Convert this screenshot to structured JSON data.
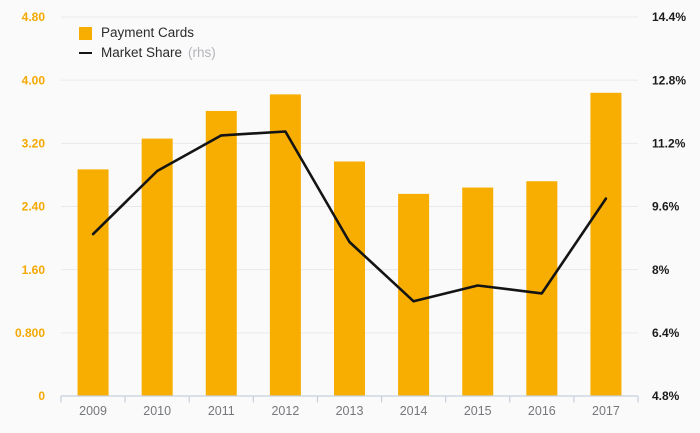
{
  "chart_data": {
    "type": "bar",
    "subtype": "bar-line-combo",
    "categories": [
      "2009",
      "2010",
      "2011",
      "2012",
      "2013",
      "2014",
      "2015",
      "2016",
      "2017"
    ],
    "series": [
      {
        "name": "Payment Cards",
        "mark": "bar",
        "axis": "left",
        "color": "#f8ae00",
        "values": [
          2.87,
          3.26,
          3.61,
          3.82,
          2.97,
          2.56,
          2.64,
          2.72,
          3.84
        ]
      },
      {
        "name": "Market Share (rhs)",
        "mark": "line",
        "axis": "right",
        "color": "#141414",
        "values": [
          8.9,
          10.5,
          11.4,
          11.5,
          8.7,
          7.2,
          7.6,
          7.4,
          9.8
        ]
      }
    ],
    "title": "",
    "xlabel": "",
    "ylabel": "",
    "left_axis": {
      "min": 0,
      "max": 4.8,
      "tick_step": 0.8,
      "tick_labels": [
        "0",
        "0.800",
        "1.60",
        "2.40",
        "3.20",
        "4.00",
        "4.80"
      ],
      "label_color": "#f5a800"
    },
    "right_axis": {
      "min": 4.8,
      "max": 14.4,
      "tick_step": 1.6,
      "tick_labels": [
        "4.8%",
        "6.4%",
        "8%",
        "9.6%",
        "11.2%",
        "12.8%",
        "14.4%"
      ],
      "label_color": "#1b1b1b"
    },
    "grid": true,
    "legend_position": "top-left",
    "legend": {
      "bar_label": "Payment Cards",
      "line_label": "Market Share",
      "line_suffix": "(rhs)"
    }
  },
  "colors": {
    "background": "#fafafa",
    "gridline": "#e9e9e9",
    "axis_line": "#c6d0dd",
    "bar": "#f8ae00",
    "line": "#141414",
    "year_label": "#75777b"
  }
}
